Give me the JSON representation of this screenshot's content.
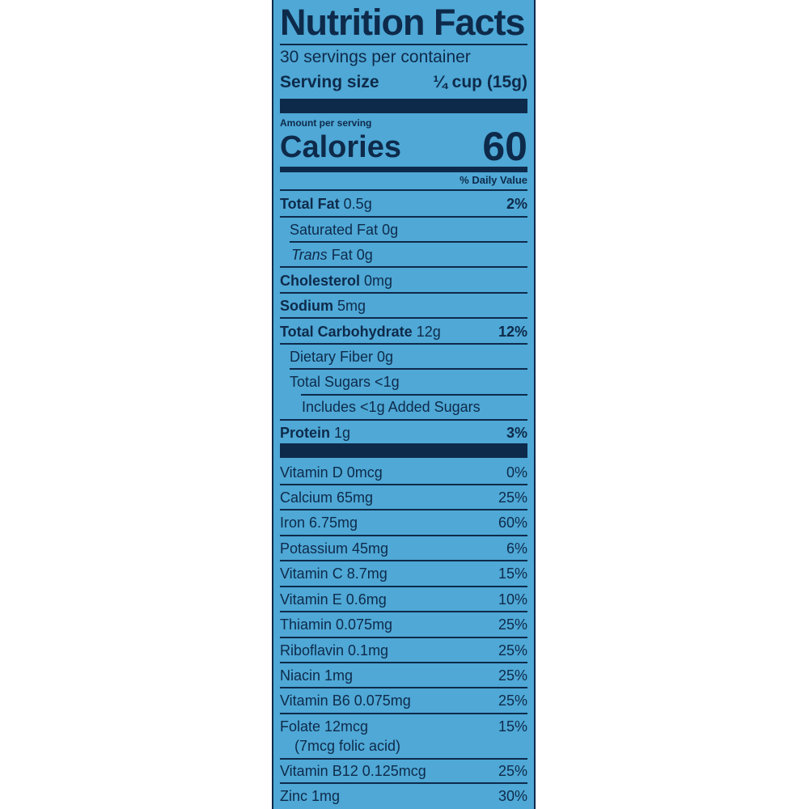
{
  "label": {
    "title": "Nutrition Facts",
    "servings": "30 servings per container",
    "serving_size_label": "Serving size",
    "serving_size_value": "¼ cup (15g)",
    "amount_per_serving": "Amount per serving",
    "calories_label": "Calories",
    "calories_value": "60",
    "daily_value_header": "% Daily Value"
  },
  "nutrients": [
    {
      "bold": "Total Fat",
      "rest": " 0.5g",
      "pct": "2%"
    },
    {
      "bold": "",
      "rest": "Saturated Fat 0g",
      "pct": ""
    },
    {
      "bold": "",
      "italic": "Trans",
      "rest": " Fat 0g",
      "pct": ""
    },
    {
      "bold": "Cholesterol",
      "rest": " 0mg",
      "pct": ""
    },
    {
      "bold": "Sodium",
      "rest": " 5mg",
      "pct": ""
    },
    {
      "bold": "Total Carbohydrate",
      "rest": " 12g",
      "pct": "12%"
    },
    {
      "bold": "",
      "rest": "Dietary Fiber 0g",
      "pct": ""
    },
    {
      "bold": "",
      "rest": "Total Sugars <1g",
      "pct": ""
    },
    {
      "bold": "",
      "rest": "Includes <1g Added Sugars",
      "pct": ""
    },
    {
      "bold": "Protein",
      "rest": " 1g",
      "pct": "3%"
    }
  ],
  "vitamins": [
    {
      "name": "Vitamin D 0mcg",
      "pct": "0%"
    },
    {
      "name": "Calcium 65mg",
      "pct": "25%"
    },
    {
      "name": "Iron 6.75mg",
      "pct": "60%"
    },
    {
      "name": "Potassium 45mg",
      "pct": "6%"
    },
    {
      "name": "Vitamin C 8.7mg",
      "pct": "15%"
    },
    {
      "name": "Vitamin E 0.6mg",
      "pct": "10%"
    },
    {
      "name": "Thiamin 0.075mg",
      "pct": "25%"
    },
    {
      "name": "Riboflavin 0.1mg",
      "pct": "25%"
    },
    {
      "name": "Niacin 1mg",
      "pct": "25%"
    },
    {
      "name": "Vitamin B6 0.075mg",
      "pct": "25%"
    },
    {
      "name": "Folate 12mcg",
      "sub": "(7mcg folic acid)",
      "pct": "15%"
    },
    {
      "name": "Vitamin B12 0.125mcg",
      "pct": "25%"
    },
    {
      "name": "Zinc 1mg",
      "pct": "30%"
    }
  ],
  "colors": {
    "panel": "#4fa8d6",
    "ink": "#0e2a4a"
  }
}
